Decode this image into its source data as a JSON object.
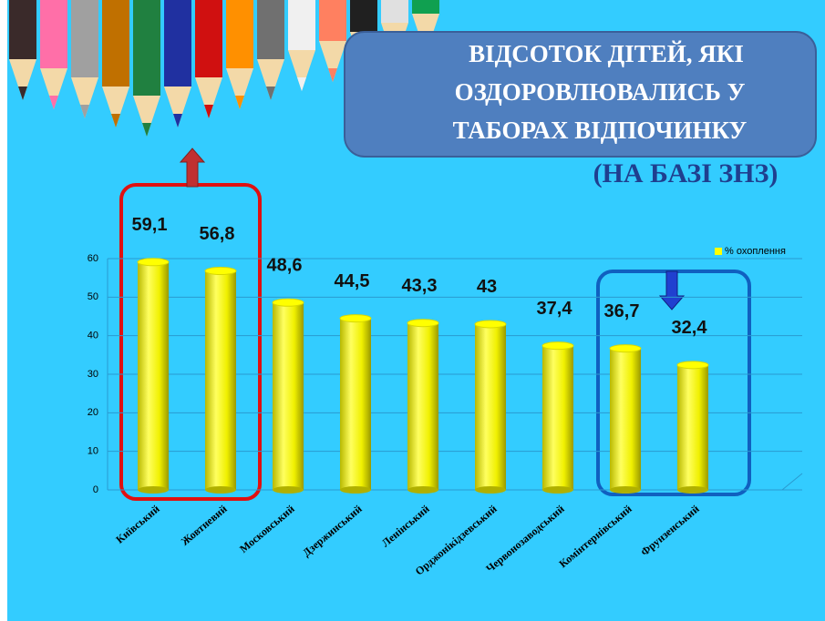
{
  "chart_data": {
    "type": "bar",
    "title": [
      "ВІДСОТОК ДІТЕЙ, ЯКІ",
      "ОЗДОРОВЛЮВАЛИСЬ У",
      "ТАБОРАХ ВІДПОЧИНКУ"
    ],
    "subtitle": "(НА БАЗІ ЗНЗ)",
    "categories": [
      "Київський",
      "Жовтневий",
      "Московський",
      "Дзержинський",
      "Ленінський",
      "Орджонікідзевський",
      "Червонозаводський",
      "Комінтернівський",
      "Фрунзенський"
    ],
    "series": [
      {
        "name": "% охоплення",
        "color": "#ffff00",
        "values": [
          59.1,
          56.8,
          48.6,
          44.5,
          43.3,
          43,
          37.4,
          36.7,
          32.4
        ],
        "value_labels": [
          "59,1",
          "56,8",
          "48,6",
          "44,5",
          "43,3",
          "43",
          "37,4",
          "36,7",
          "32,4"
        ]
      }
    ],
    "ylim": [
      0,
      60
    ],
    "yticks": [
      0,
      10,
      20,
      30,
      40,
      50,
      60
    ],
    "grid": true,
    "legend": "top-right"
  }
}
